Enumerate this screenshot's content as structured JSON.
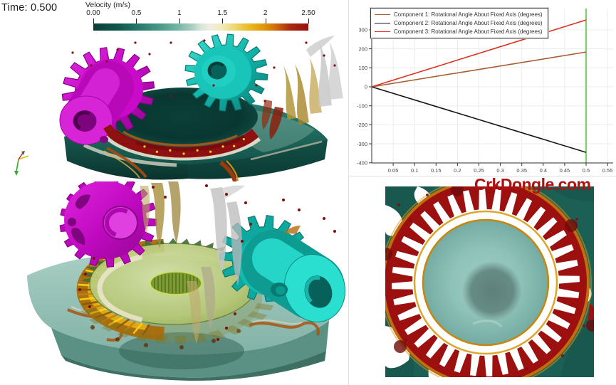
{
  "viewport": {
    "time_label": "Time: 0.500"
  },
  "colorbar": {
    "title": "Velocity (m/s)",
    "tick_labels": [
      "0.00",
      "0.5",
      "1",
      "1.5",
      "2",
      "2.50"
    ],
    "tick_values": [
      0,
      0.5,
      1,
      1.5,
      2,
      2.5
    ],
    "min": 0,
    "max": 2.5,
    "stops": [
      [
        0,
        "#083f37"
      ],
      [
        0.12,
        "#11584d"
      ],
      [
        0.22,
        "#2a7c6e"
      ],
      [
        0.32,
        "#4f9c8c"
      ],
      [
        0.4,
        "#7ab7a8"
      ],
      [
        0.46,
        "#a9d0c2"
      ],
      [
        0.5,
        "#d6e5d6"
      ],
      [
        0.54,
        "#efefe2"
      ],
      [
        0.6,
        "#f2e9bc"
      ],
      [
        0.66,
        "#eed66e"
      ],
      [
        0.72,
        "#e9bc2a"
      ],
      [
        0.78,
        "#e29d0d"
      ],
      [
        0.84,
        "#d4720b"
      ],
      [
        0.88,
        "#bf4a0f"
      ],
      [
        0.92,
        "#ab2410"
      ],
      [
        1,
        "#990f10"
      ]
    ]
  },
  "chart_data": {
    "type": "line",
    "title": "",
    "xlabel": "",
    "ylabel": "",
    "xlim": [
      0,
      0.5667
    ],
    "ylim": [
      -412,
      412
    ],
    "grid": true,
    "legend_position": "top-left",
    "x_tick_labels": [
      "0.05",
      "0.1",
      "0.15",
      "0.2",
      "0.25",
      "0.3",
      "0.35",
      "0.4",
      "0.45",
      "0.5",
      "0.55"
    ],
    "x_ticks": [
      0.05,
      0.1,
      0.15,
      0.2,
      0.25,
      0.3,
      0.35,
      0.4,
      0.45,
      0.5,
      0.55
    ],
    "y_tick_labels": [
      "300",
      "200",
      "100",
      "0",
      "-100",
      "-200",
      "-300",
      "-400"
    ],
    "y_ticks": [
      300,
      200,
      100,
      0,
      -100,
      -200,
      -300,
      -400
    ],
    "series": [
      {
        "name": "Component 1: Rotational Angle About Fixed Axis (degrees)",
        "color": "#a85c32",
        "points": [
          [
            0,
            0
          ],
          [
            0.5,
            183
          ]
        ]
      },
      {
        "name": "Component 2: Rotational Angle About Fixed Axis (degrees)",
        "color": "#151515",
        "points": [
          [
            0,
            0
          ],
          [
            0.5,
            -345
          ]
        ]
      },
      {
        "name": "Component 3: Rotational Angle About Fixed Axis (degrees)",
        "color": "#df301d",
        "points": [
          [
            0,
            0
          ],
          [
            0.5,
            352
          ]
        ]
      }
    ],
    "time_marker": {
      "x": 0.5,
      "color": "#7ccf6a"
    }
  },
  "watermark": {
    "text": "CrkDongle.com",
    "color": "#b01010"
  },
  "scene": {
    "colors": {
      "magenta": "#c40cc4",
      "magenta_dark": "#850584",
      "magenta_light": "#e23ae2",
      "magenta_bore": "#7c047c",
      "teal_gear": "#12b5aa",
      "teal_gear_dark": "#087a72",
      "teal_gear_light": "#2adfd0",
      "teal_bore": "#07615a",
      "fluid_top": "#1d6b60",
      "fluid_side": "#0e4f46",
      "fluid_deep": "#0a332d",
      "fluid_pale": "#9cc0b2",
      "velocity_red": "#9c1010",
      "velocity_red_dark": "#6f0a0a",
      "cream": "#e9e5d2",
      "gold": "#e7b416",
      "amber": "#a96c08",
      "orange_streak": "#c87f12",
      "olive_face": "#a8bd66",
      "olive_edge": "#5e7a22",
      "olive_hub": "#7e9a34",
      "splash_gray": "#c6c6c6",
      "splash_tan": "#b09a4a",
      "speck_red": "#7e0f0f",
      "br_bg_teal": "#2f7d74",
      "br_bg_dark": "#16524a",
      "br_center": "#8fc2b8",
      "br_blob": "#5e807b"
    },
    "triad": {
      "axis_down_color": "#2fae2f",
      "axis_right_color": "#d8c400",
      "axis_up_color": "#cc2222"
    }
  }
}
